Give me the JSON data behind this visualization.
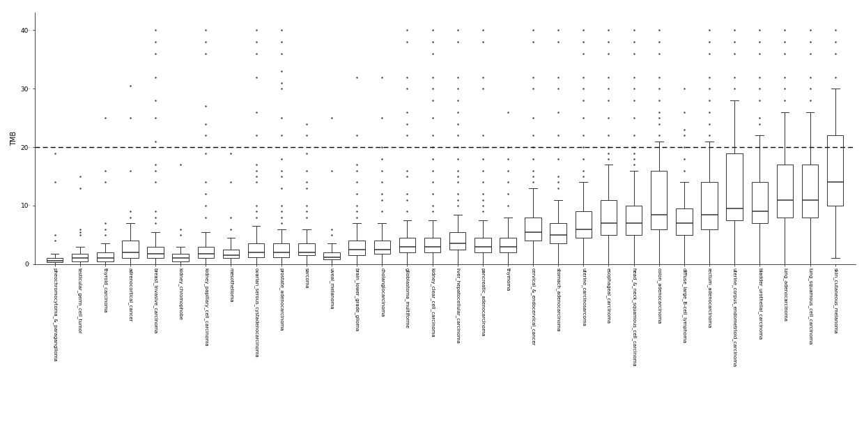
{
  "categories": [
    "pheochromocytoma_&_paraganglioma",
    "testicular_germ_cell_tumor",
    "thyroid_carcinoma",
    "adrenocortical_cancer",
    "breast_invasive_carcinoma",
    "kidney_chromophobe",
    "kidney_papillary_cell_carcinoma",
    "mesothelioma",
    "ovarian_serous_cystadenocarcinoma",
    "prostate_adenocarcinoma",
    "sarcoma",
    "uveal_melanoma",
    "brain_lower_grade_glioma",
    "cholangiocarcinoma",
    "glioblastoma_multiforme",
    "kidney_clear_cell_carcinoma",
    "liver_hepatocellular_carcinoma",
    "pancreatic_adenocarcinoma",
    "thymoma",
    "cervical_&_endocervical_cancer",
    "stomach_adenocarcinoma",
    "uterine_carcinosarcoma",
    "esophageal_carcinoma",
    "head_&_neck_squamous_cell_carcinoma",
    "colon_adenocarcinoma",
    "diffuse_large_B-cell_lymphoma",
    "rectum_adenocarcinoma",
    "uterine_corpus_endometrioid_carcinoma",
    "bladder_urothelial_carcinoma",
    "lung_adenocarcinoma",
    "lung_squamous_cell_carcinoma",
    "skin_cutaneous_melanoma"
  ],
  "box_stats": {
    "pheochromocytoma_&_paraganglioma": {
      "q1": 0.3,
      "median": 0.6,
      "q3": 1.0,
      "whislo": 0.0,
      "whishi": 1.8,
      "fliers_above": [
        4.0,
        5.0,
        14.0,
        19.0
      ]
    },
    "testicular_germ_cell_tumor": {
      "q1": 0.5,
      "median": 1.0,
      "q3": 1.8,
      "whislo": 0.0,
      "whishi": 3.0,
      "fliers_above": [
        5.0,
        5.5,
        6.0,
        13.0,
        15.0
      ]
    },
    "thyroid_carcinoma": {
      "q1": 0.5,
      "median": 1.0,
      "q3": 2.0,
      "whislo": 0.0,
      "whishi": 3.5,
      "fliers_above": [
        5.0,
        6.0,
        7.0,
        14.0,
        16.0,
        25.0
      ]
    },
    "adrenocortical_cancer": {
      "q1": 1.0,
      "median": 2.0,
      "q3": 4.0,
      "whislo": 0.0,
      "whishi": 7.0,
      "fliers_above": [
        8.0,
        9.0,
        16.0,
        25.0,
        30.5
      ]
    },
    "breast_invasive_carcinoma": {
      "q1": 1.0,
      "median": 1.8,
      "q3": 3.0,
      "whislo": 0.0,
      "whishi": 5.5,
      "fliers_above": [
        7.0,
        8.0,
        9.0,
        14.0,
        16.0,
        17.0,
        21.0,
        25.0,
        28.0,
        32.0,
        36.0,
        38.0,
        40.0
      ]
    },
    "kidney_chromophobe": {
      "q1": 0.5,
      "median": 1.0,
      "q3": 1.8,
      "whislo": 0.0,
      "whishi": 3.0,
      "fliers_above": [
        5.0,
        6.0,
        17.0
      ]
    },
    "kidney_papillary_cell_carcinoma": {
      "q1": 1.0,
      "median": 1.8,
      "q3": 3.0,
      "whislo": 0.0,
      "whishi": 5.5,
      "fliers_above": [
        8.0,
        10.0,
        12.0,
        14.0,
        19.0,
        22.0,
        24.0,
        27.0,
        36.0,
        38.0,
        40.0
      ]
    },
    "mesothelioma": {
      "q1": 1.0,
      "median": 1.5,
      "q3": 2.5,
      "whislo": 0.0,
      "whishi": 4.5,
      "fliers_above": [
        6.0,
        8.0,
        14.0,
        19.0
      ]
    },
    "ovarian_serous_cystadenocarcinoma": {
      "q1": 1.2,
      "median": 2.0,
      "q3": 3.5,
      "whislo": 0.0,
      "whishi": 6.5,
      "fliers_above": [
        8.0,
        9.0,
        10.0,
        14.0,
        15.0,
        16.0,
        17.0,
        22.0,
        26.0,
        32.0,
        36.0,
        38.0,
        40.0
      ]
    },
    "prostate_adenocarcinoma": {
      "q1": 1.2,
      "median": 2.0,
      "q3": 3.5,
      "whislo": 0.0,
      "whishi": 6.0,
      "fliers_above": [
        7.0,
        8.0,
        9.0,
        10.0,
        13.0,
        15.0,
        16.0,
        18.0,
        22.0,
        25.0,
        30.0,
        31.0,
        33.0,
        36.0,
        38.0,
        40.0
      ]
    },
    "sarcoma": {
      "q1": 1.5,
      "median": 2.0,
      "q3": 3.5,
      "whislo": 0.0,
      "whishi": 6.0,
      "fliers_above": [
        8.0,
        9.0,
        10.0,
        13.0,
        14.0,
        16.0,
        19.0,
        22.0,
        24.0
      ]
    },
    "uveal_melanoma": {
      "q1": 0.8,
      "median": 1.2,
      "q3": 2.0,
      "whislo": 0.0,
      "whishi": 3.5,
      "fliers_above": [
        5.0,
        6.0,
        16.0,
        25.0
      ]
    },
    "brain_lower_grade_glioma": {
      "q1": 1.5,
      "median": 2.5,
      "q3": 4.0,
      "whislo": 0.0,
      "whishi": 7.0,
      "fliers_above": [
        8.0,
        9.0,
        10.0,
        12.0,
        14.0,
        16.0,
        17.0,
        22.0,
        32.0
      ]
    },
    "cholangiocarcinoma": {
      "q1": 1.8,
      "median": 2.5,
      "q3": 4.0,
      "whislo": 0.0,
      "whishi": 7.0,
      "fliers_above": [
        9.0,
        11.0,
        12.0,
        14.0,
        16.0,
        18.0,
        20.0,
        25.0,
        32.0
      ]
    },
    "glioblastoma_multiforme": {
      "q1": 2.0,
      "median": 3.0,
      "q3": 4.5,
      "whislo": 0.0,
      "whishi": 7.5,
      "fliers_above": [
        9.0,
        11.0,
        12.0,
        15.0,
        16.0,
        22.0,
        24.0,
        26.0,
        30.0,
        32.0,
        38.0,
        40.0
      ]
    },
    "kidney_clear_cell_carcinoma": {
      "q1": 2.0,
      "median": 3.0,
      "q3": 4.5,
      "whislo": 0.0,
      "whishi": 7.5,
      "fliers_above": [
        9.0,
        10.0,
        12.0,
        14.0,
        16.0,
        18.0,
        20.0,
        22.0,
        25.0,
        28.0,
        30.0,
        32.0,
        36.0,
        38.0,
        40.0
      ]
    },
    "liver_hepatocellular_carcinoma": {
      "q1": 2.5,
      "median": 3.5,
      "q3": 5.5,
      "whislo": 0.0,
      "whishi": 8.5,
      "fliers_above": [
        10.0,
        11.0,
        12.0,
        14.0,
        15.0,
        16.0,
        18.0,
        20.0,
        22.0,
        24.0,
        26.0,
        28.0,
        30.0,
        32.0,
        38.0,
        40.0
      ]
    },
    "pancreatic_adenocarcinoma": {
      "q1": 2.0,
      "median": 3.0,
      "q3": 4.5,
      "whislo": 0.0,
      "whishi": 7.5,
      "fliers_above": [
        9.0,
        10.0,
        11.0,
        12.0,
        14.0,
        16.0,
        18.0,
        20.0,
        22.0,
        30.0,
        32.0,
        38.0,
        40.0
      ]
    },
    "thymoma": {
      "q1": 2.0,
      "median": 3.0,
      "q3": 4.5,
      "whislo": 0.0,
      "whishi": 8.0,
      "fliers_above": [
        10.0,
        12.0,
        14.0,
        16.0,
        18.0,
        20.0,
        26.0
      ]
    },
    "cervical_&_endocervical_cancer": {
      "q1": 4.0,
      "median": 5.5,
      "q3": 8.0,
      "whislo": 0.0,
      "whishi": 13.0,
      "fliers_above": [
        14.0,
        15.0,
        16.0,
        18.0,
        20.0,
        22.0,
        25.0,
        30.0,
        32.0,
        38.0,
        40.0
      ]
    },
    "stomach_adenocarcinoma": {
      "q1": 3.5,
      "median": 5.0,
      "q3": 7.0,
      "whislo": 0.0,
      "whishi": 11.0,
      "fliers_above": [
        13.0,
        14.0,
        15.0,
        18.0,
        20.0,
        22.0,
        26.0,
        30.0,
        32.0,
        38.0,
        40.0
      ]
    },
    "uterine_carcinosarcoma": {
      "q1": 4.5,
      "median": 6.0,
      "q3": 9.0,
      "whislo": 0.0,
      "whishi": 14.0,
      "fliers_above": [
        15.0,
        16.0,
        18.0,
        20.0,
        22.0,
        25.0,
        28.0,
        30.0,
        32.0,
        36.0,
        38.0,
        40.0
      ]
    },
    "esophageal_carcinoma": {
      "q1": 5.0,
      "median": 7.0,
      "q3": 11.0,
      "whislo": 0.0,
      "whishi": 17.0,
      "fliers_above": [
        18.0,
        19.0,
        20.0,
        22.0,
        25.0,
        28.0,
        30.0,
        32.0,
        36.0,
        38.0,
        40.0
      ]
    },
    "head_&_neck_squamous_cell_carcinoma": {
      "q1": 5.0,
      "median": 7.0,
      "q3": 10.0,
      "whislo": 0.0,
      "whishi": 16.0,
      "fliers_above": [
        17.0,
        18.0,
        19.0,
        20.0,
        22.0,
        25.0,
        28.0,
        30.0,
        32.0,
        36.0,
        38.0,
        40.0
      ]
    },
    "colon_adenocarcinoma": {
      "q1": 6.0,
      "median": 8.5,
      "q3": 16.0,
      "whislo": 0.0,
      "whishi": 21.0,
      "fliers_above": [
        22.0,
        24.0,
        25.0,
        26.0,
        28.0,
        30.0,
        32.0,
        36.0,
        38.0,
        40.0
      ]
    },
    "diffuse_large_B-cell_lymphoma": {
      "q1": 5.0,
      "median": 7.0,
      "q3": 9.5,
      "whislo": 0.0,
      "whishi": 14.0,
      "fliers_above": [
        16.0,
        18.0,
        20.0,
        22.0,
        23.0,
        26.0,
        30.0
      ]
    },
    "rectum_adenocarcinoma": {
      "q1": 6.0,
      "median": 8.5,
      "q3": 14.0,
      "whislo": 0.0,
      "whishi": 21.0,
      "fliers_above": [
        22.0,
        24.0,
        26.0,
        28.0,
        30.0,
        32.0,
        36.0,
        38.0,
        40.0
      ]
    },
    "uterine_corpus_endometrioid_carcinoma": {
      "q1": 7.5,
      "median": 9.5,
      "q3": 19.0,
      "whislo": 0.0,
      "whishi": 28.0,
      "fliers_above": [
        30.0,
        32.0,
        36.0,
        38.0,
        40.0
      ]
    },
    "bladder_urothelial_carcinoma": {
      "q1": 7.0,
      "median": 9.0,
      "q3": 14.0,
      "whislo": 0.0,
      "whishi": 22.0,
      "fliers_above": [
        24.0,
        25.0,
        28.0,
        30.0,
        32.0,
        36.0,
        38.0,
        40.0
      ]
    },
    "lung_adenocarcinoma": {
      "q1": 8.0,
      "median": 11.0,
      "q3": 17.0,
      "whislo": 0.0,
      "whishi": 26.0,
      "fliers_above": [
        28.0,
        30.0,
        32.0,
        36.0,
        38.0,
        40.0
      ]
    },
    "lung_squamous_cell_carcinoma": {
      "q1": 8.0,
      "median": 11.0,
      "q3": 17.0,
      "whislo": 0.0,
      "whishi": 26.0,
      "fliers_above": [
        28.0,
        30.0,
        32.0,
        36.0,
        38.0,
        40.0
      ]
    },
    "skin_cutaneous_melanoma": {
      "q1": 10.0,
      "median": 14.0,
      "q3": 22.0,
      "whislo": 1.0,
      "whishi": 30.0,
      "fliers_above": [
        32.0,
        36.0,
        38.0,
        40.0
      ]
    }
  },
  "category_labels": [
    "pheochromocytoma_&_paraganglioma",
    "testicular_germ_cell_tumor",
    "thyroid_carcinoma",
    "adrenocortical_cancer",
    "breast_invasive_carcinoma",
    "kidney_chromophobe",
    "kidney_papillary_cell_carcinoma",
    "mesothelioma",
    "ovarian_serous_cystadenocarcinoma",
    "prostate_adenocarcinoma",
    "sarcoma",
    "uveal_melanoma",
    "brain_lower_grade_glioma",
    "cholangiocarcinoma",
    "glioblastoma_multiforme",
    "kidney_clear_cell_carcinoma",
    "liver_hepatocellular_carcinoma",
    "pancreatic_adenocarcinoma",
    "thymoma",
    "cervical_&_endocervical_cancer",
    "stomach_adenocarcinoma",
    "uterine_carcinosarcoma",
    "esophageal_carcinoma",
    "head_&_neck_squamous_cell_carcinoma",
    "colon_adenocarcinoma",
    "diffuse_large_B-cell_lymphoma",
    "rectum_adenocarcinoma",
    "uterine_corpus_endometrioid_carcinoma",
    "bladder_urothelial_carcinoma",
    "lung_adenocarcinoma",
    "lung_squamous_cell_carcinoma",
    "skin_cutaneous_melanoma"
  ],
  "ylabel": "TMB",
  "ylim": [
    0,
    43
  ],
  "yticks": [
    0,
    10,
    20,
    30,
    40
  ],
  "ytick_labels": [
    "0·",
    "10·",
    "20·",
    "30·",
    "40·"
  ],
  "dashed_line_y": 20,
  "box_color": "white",
  "box_edge_color": "#333333",
  "median_color": "#333333",
  "whisker_color": "#333333",
  "flier_color": "#222222",
  "flier_size": 1.5,
  "box_width": 0.65,
  "linewidth": 0.7,
  "background_color": "white",
  "tick_label_fontsize": 5.0,
  "ylabel_fontsize": 7,
  "ytick_fontsize": 6.5
}
